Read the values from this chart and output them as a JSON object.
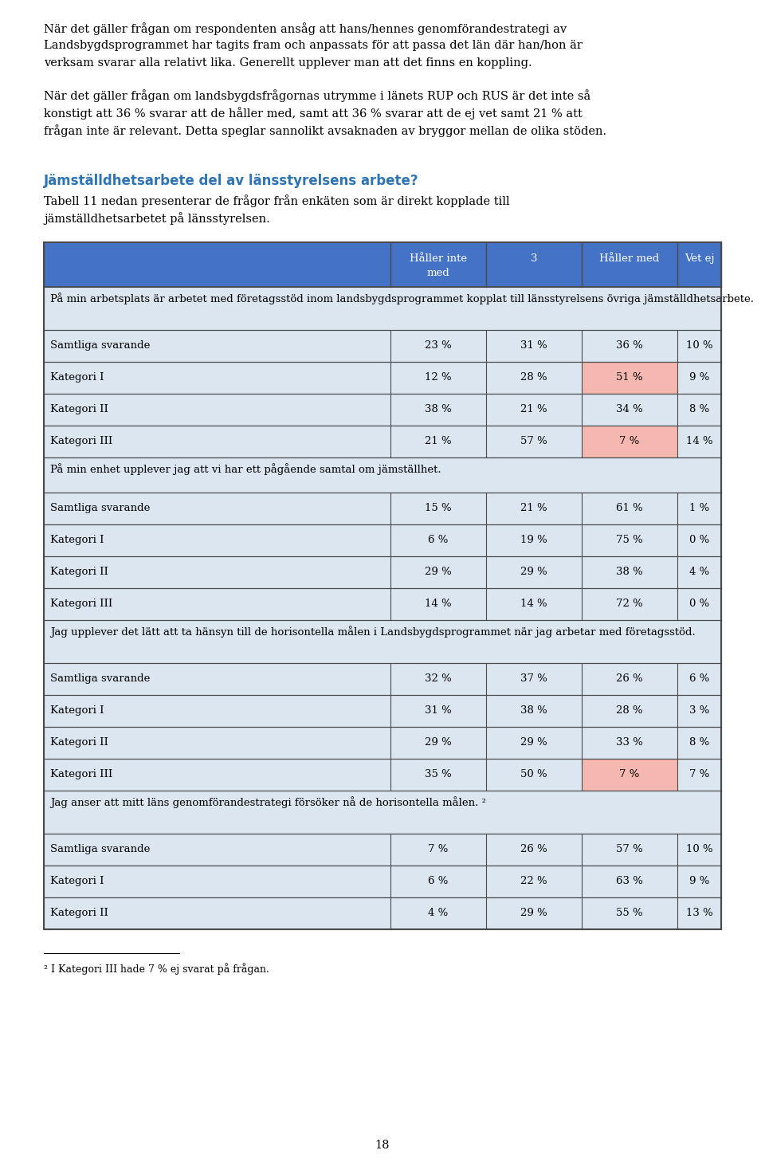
{
  "page_bg": "#ffffff",
  "text_color": "#000000",
  "heading_color": "#2e74b5",
  "table_header_bg": "#4472c4",
  "table_header_text": "#ffffff",
  "table_row_bg": "#dce6f1",
  "table_section_bg": "#dce6f1",
  "highlight_pink": "#f4b8b0",
  "para1": "När det gäller frågan om respondenten ansåg att hans/hennes genomförandestrategi av Landsbygdsprogrammet har tagits fram och anpassats för att passa det län där han/hon är verksam svarar alla relativt lika. Generellt upplever man att det finns en koppling.",
  "para2": "När det gäller frågan om landsbygdsfrågornas utrymme i länets RUP och RUS är det inte så konstigt att 36 % svarar att de håller med, samt att 36 % svarar att de ej vet samt 21 % att frågan inte är relevant. Detta speglar sannolikt avsaknaden av bryggor mellan de olika stöden.",
  "heading": "Jämställdhetsarbete del av länsstyrelsens arbete?",
  "para3": "Tabell 11 nedan presenterar de frågor från enkäten som är direkt kopplade till jämställdhetsarbetet på länsstyrelsen.",
  "col_headers": [
    "Håller inte\nmed",
    "3",
    "Håller med",
    "Vet ej"
  ],
  "sections": [
    {
      "title": "På min arbetsplats är arbetet med företagsstöd inom landsbygdsprogrammet kopplat till länsstyrelsens övriga jämställdhetsarbete.",
      "rows": [
        {
          "label": "Samtliga svarande",
          "vals": [
            "23 %",
            "31 %",
            "36 %",
            "10 %"
          ],
          "highlight_col": -1
        },
        {
          "label": "Kategori I",
          "vals": [
            "12 %",
            "28 %",
            "51 %",
            "9 %"
          ],
          "highlight_col": 2
        },
        {
          "label": "Kategori II",
          "vals": [
            "38 %",
            "21 %",
            "34 %",
            "8 %"
          ],
          "highlight_col": -1
        },
        {
          "label": "Kategori III",
          "vals": [
            "21 %",
            "57 %",
            "7 %",
            "14 %"
          ],
          "highlight_col": 2
        }
      ]
    },
    {
      "title": "På min enhet upplever jag att vi har ett pågående samtal om jämställhet.",
      "rows": [
        {
          "label": "Samtliga svarande",
          "vals": [
            "15 %",
            "21 %",
            "61 %",
            "1 %"
          ],
          "highlight_col": -1
        },
        {
          "label": "Kategori I",
          "vals": [
            "6 %",
            "19 %",
            "75 %",
            "0 %"
          ],
          "highlight_col": -1
        },
        {
          "label": "Kategori II",
          "vals": [
            "29 %",
            "29 %",
            "38 %",
            "4 %"
          ],
          "highlight_col": -1
        },
        {
          "label": "Kategori III",
          "vals": [
            "14 %",
            "14 %",
            "72 %",
            "0 %"
          ],
          "highlight_col": -1
        }
      ]
    },
    {
      "title": "Jag upplever det lätt att ta hänsyn till de horisontella målen i Landsbygdsprogrammet när jag arbetar med företagsstöd.",
      "rows": [
        {
          "label": "Samtliga svarande",
          "vals": [
            "32 %",
            "37 %",
            "26 %",
            "6 %"
          ],
          "highlight_col": -1
        },
        {
          "label": "Kategori I",
          "vals": [
            "31 %",
            "38 %",
            "28 %",
            "3 %"
          ],
          "highlight_col": -1
        },
        {
          "label": "Kategori II",
          "vals": [
            "29 %",
            "29 %",
            "33 %",
            "8 %"
          ],
          "highlight_col": -1
        },
        {
          "label": "Kategori III",
          "vals": [
            "35 %",
            "50 %",
            "7 %",
            "7 %"
          ],
          "highlight_col": 2
        }
      ]
    },
    {
      "title": "Jag anser att mitt läns genomförandestrategi försöker nå de horisontella målen. ²",
      "rows": [
        {
          "label": "Samtliga svarande",
          "vals": [
            "7 %",
            "26 %",
            "57 %",
            "10 %"
          ],
          "highlight_col": -1
        },
        {
          "label": "Kategori I",
          "vals": [
            "6 %",
            "22 %",
            "63 %",
            "9 %"
          ],
          "highlight_col": -1
        },
        {
          "label": "Kategori II",
          "vals": [
            "4 %",
            "29 %",
            "55 %",
            "13 %"
          ],
          "highlight_col": -1
        }
      ]
    }
  ],
  "footnote": "² I Kategori III hade 7 % ej svarat på frågan.",
  "page_number": "18"
}
